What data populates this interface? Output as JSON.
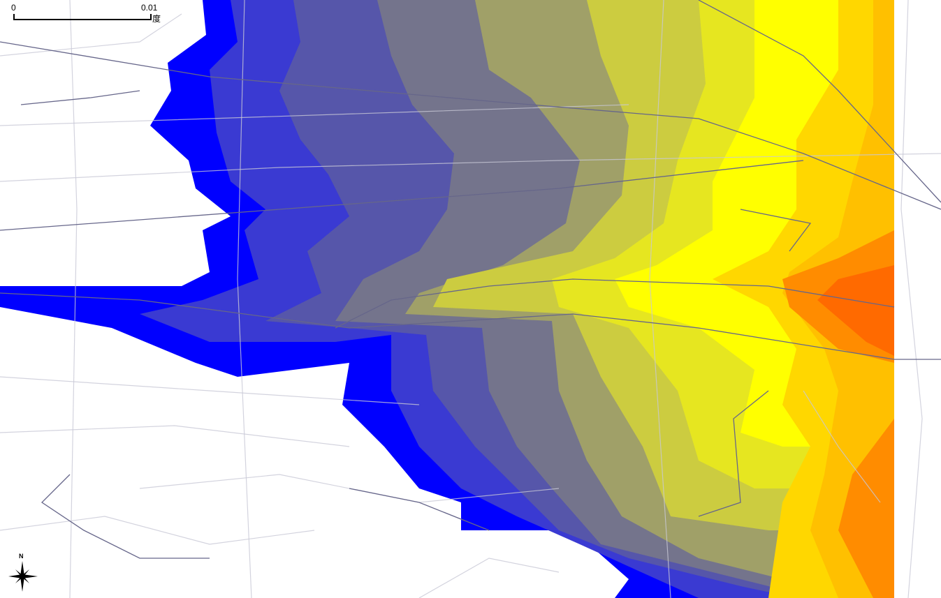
{
  "scale_bar": {
    "start_label": "0",
    "end_label": "0.01",
    "unit_label": "度"
  },
  "north_arrow": {
    "label": "N",
    "icon": "compass-star-icon"
  },
  "raster": {
    "colors": [
      "#0000ff",
      "#3a3ad2",
      "#5656aa",
      "#74748c",
      "#a0a068",
      "#cccc40",
      "#e6e620",
      "#ffff00",
      "#ffd700",
      "#ffc000",
      "#ff8c00",
      "#ff6a00"
    ]
  },
  "map_colors": {
    "major_road": "#66668a",
    "minor_road": "#c8c8d6",
    "background": "#ffffff"
  }
}
